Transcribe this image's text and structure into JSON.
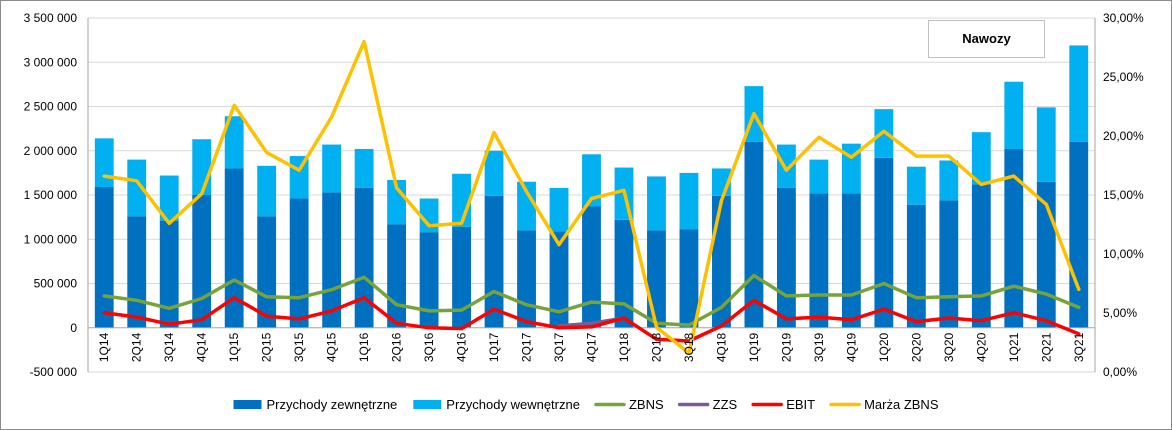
{
  "chart_data": {
    "type": "bar",
    "title": "Nawozy",
    "categories": [
      "1Q14",
      "2Q14",
      "3Q14",
      "4Q14",
      "1Q15",
      "2Q15",
      "3Q15",
      "4Q15",
      "1Q16",
      "2Q16",
      "3Q16",
      "4Q16",
      "1Q17",
      "2Q17",
      "3Q17",
      "4Q17",
      "1Q18",
      "2Q18",
      "3Q18",
      "4Q18",
      "1Q19",
      "2Q19",
      "3Q19",
      "4Q19",
      "1Q20",
      "2Q20",
      "3Q20",
      "4Q20",
      "1Q21",
      "2Q21",
      "3Q21"
    ],
    "y_left": {
      "ylim": [
        -500000,
        3500000
      ],
      "ticks": [
        -500000,
        0,
        500000,
        1000000,
        1500000,
        2000000,
        2500000,
        3000000,
        3500000
      ],
      "tick_labels": [
        "-500 000",
        "0",
        "500 000",
        "1 000 000",
        "1 500 000",
        "2 000 000",
        "2 500 000",
        "3 000 000",
        "3 500 000"
      ]
    },
    "y_right": {
      "ylim": [
        0,
        30
      ],
      "ticks": [
        0,
        5,
        10,
        15,
        20,
        25,
        30
      ],
      "tick_labels": [
        "0,00%",
        "5,00%",
        "10,00%",
        "15,00%",
        "20,00%",
        "25,00%",
        "30,00%"
      ]
    },
    "grid": "horizontal",
    "legend_position": "bottom",
    "series": [
      {
        "name": "Przychody zewnętrzne",
        "kind": "bar-stack",
        "axis": "left",
        "color": "#0070c0",
        "values": [
          1590000,
          1260000,
          1210000,
          1500000,
          1800000,
          1260000,
          1460000,
          1530000,
          1580000,
          1170000,
          1080000,
          1140000,
          1490000,
          1100000,
          1090000,
          1370000,
          1220000,
          1100000,
          1110000,
          1490000,
          2100000,
          1580000,
          1520000,
          1520000,
          1920000,
          1390000,
          1440000,
          1620000,
          2020000,
          1650000,
          2100000
        ]
      },
      {
        "name": "Przychody wewnętrzne",
        "kind": "bar-stack",
        "axis": "left",
        "color": "#00b0f0",
        "values": [
          550000,
          640000,
          510000,
          630000,
          590000,
          570000,
          480000,
          540000,
          440000,
          500000,
          380000,
          600000,
          510000,
          550000,
          490000,
          590000,
          590000,
          610000,
          640000,
          310000,
          630000,
          490000,
          380000,
          560000,
          550000,
          430000,
          450000,
          590000,
          760000,
          840000,
          1090000
        ]
      },
      {
        "name": "ZBNS",
        "kind": "line",
        "axis": "left",
        "color": "#77a33a",
        "values": [
          360000,
          310000,
          220000,
          330000,
          540000,
          350000,
          340000,
          430000,
          570000,
          260000,
          190000,
          200000,
          410000,
          260000,
          180000,
          290000,
          270000,
          50000,
          30000,
          230000,
          590000,
          360000,
          370000,
          370000,
          500000,
          340000,
          350000,
          360000,
          470000,
          380000,
          230000
        ]
      },
      {
        "name": "ZZS",
        "kind": "line",
        "axis": "left",
        "color": "#7a5c94",
        "values": [
          null,
          null,
          null,
          null,
          null,
          null,
          null,
          null,
          null,
          null,
          null,
          null,
          null,
          null,
          20000,
          50000,
          110000,
          null,
          null,
          null,
          null,
          null,
          null,
          null,
          null,
          90000,
          null,
          null,
          null,
          null,
          null
        ]
      },
      {
        "name": "EBIT",
        "kind": "line",
        "axis": "left",
        "color": "#ff0000",
        "values": [
          170000,
          120000,
          40000,
          90000,
          340000,
          130000,
          100000,
          190000,
          340000,
          50000,
          0,
          -10000,
          210000,
          70000,
          0,
          10000,
          110000,
          -130000,
          -150000,
          20000,
          310000,
          100000,
          120000,
          90000,
          210000,
          70000,
          110000,
          80000,
          170000,
          80000,
          -70000
        ]
      },
      {
        "name": "Marża ZBNS",
        "kind": "line",
        "axis": "right",
        "color": "#ffc000",
        "values": [
          16.6,
          16.2,
          12.6,
          15.1,
          22.6,
          18.6,
          17.1,
          21.6,
          28.0,
          15.6,
          12.4,
          12.6,
          20.3,
          15.3,
          10.8,
          14.7,
          15.4,
          3.8,
          1.6,
          14.5,
          21.9,
          17.1,
          19.9,
          18.2,
          20.4,
          18.3,
          18.3,
          15.9,
          16.6,
          14.2,
          7.0
        ]
      }
    ]
  }
}
